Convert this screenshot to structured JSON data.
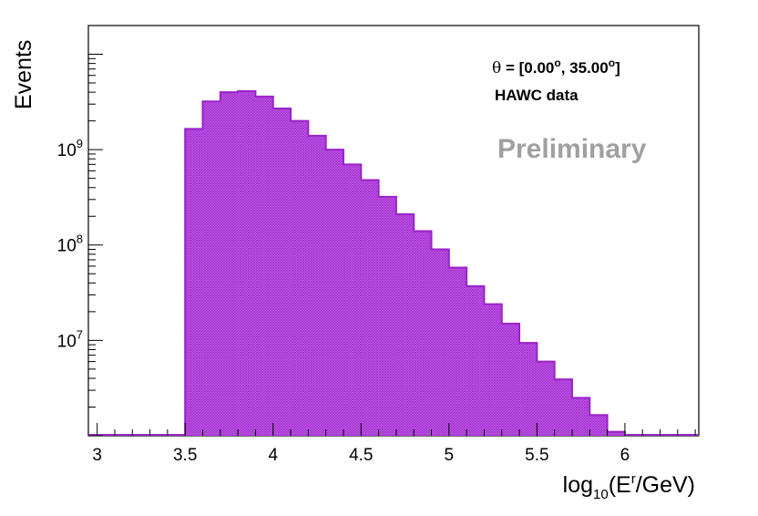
{
  "chart_data": {
    "type": "bar",
    "title": "",
    "xlabel": {
      "prefix": "log",
      "sub": "10",
      "mid": "(E",
      "sup": "r",
      "suffix": "/GeV)"
    },
    "ylabel": "Events",
    "x_scale": "linear",
    "y_scale": "log",
    "xlim": [
      2.95,
      6.42
    ],
    "ylim": [
      1000000,
      20000000000
    ],
    "x_ticks": [
      {
        "value": 3,
        "label": "3"
      },
      {
        "value": 3.5,
        "label": "3.5"
      },
      {
        "value": 4,
        "label": "4"
      },
      {
        "value": 4.5,
        "label": "4.5"
      },
      {
        "value": 5,
        "label": "5"
      },
      {
        "value": 5.5,
        "label": "5.5"
      },
      {
        "value": 6,
        "label": "6"
      }
    ],
    "y_ticks": [
      {
        "value": 10000000,
        "base": "10",
        "exp": "7"
      },
      {
        "value": 100000000,
        "base": "10",
        "exp": "8"
      },
      {
        "value": 1000000000,
        "base": "10",
        "exp": "9"
      }
    ],
    "bin_edges": [
      3.5,
      3.55,
      3.6,
      3.65,
      3.7,
      3.75,
      3.8,
      3.85,
      3.9,
      3.95,
      4.0,
      4.05,
      4.1,
      4.15,
      4.2,
      4.25,
      4.3,
      4.35,
      4.4,
      4.45,
      4.5,
      4.55,
      4.6,
      4.65,
      4.7,
      4.75,
      4.8,
      4.85,
      4.9,
      4.95,
      5.0,
      5.05,
      5.1,
      5.15,
      5.2,
      5.25,
      5.3,
      5.35,
      5.4,
      5.45,
      5.5,
      5.55,
      5.6,
      5.65,
      5.7,
      5.75,
      5.8,
      5.85,
      5.9,
      5.95,
      6.0
    ],
    "values": [
      1650000000,
      1650000000,
      3200000000,
      3200000000,
      4000000000,
      4000000000,
      4100000000,
      4100000000,
      3600000000,
      3600000000,
      2700000000,
      2700000000,
      2000000000,
      2000000000,
      1400000000,
      1400000000,
      1000000000,
      1000000000,
      700000000,
      700000000,
      480000000,
      480000000,
      320000000,
      320000000,
      210000000,
      210000000,
      140000000,
      140000000,
      90000000,
      90000000,
      58000000,
      58000000,
      37000000,
      37000000,
      24000000,
      24000000,
      15000000,
      15000000,
      9400000,
      9400000,
      6000000,
      6000000,
      3900000,
      3900000,
      2500000,
      2500000,
      1650000,
      1650000,
      1100000,
      1100000
    ],
    "series_color": "#b84ae0",
    "edge_color": "#9a23c8",
    "annotations": {
      "theta_symbol": "θ",
      "theta_open": " = [0.00",
      "theta_deg1": "o",
      "theta_mid": ", 35.00",
      "theta_deg2": "o",
      "theta_close": "]",
      "dataset": "HAWC data",
      "watermark": "Preliminary",
      "watermark_color": "#a0a0a0"
    },
    "grid": false,
    "legend": "none"
  }
}
